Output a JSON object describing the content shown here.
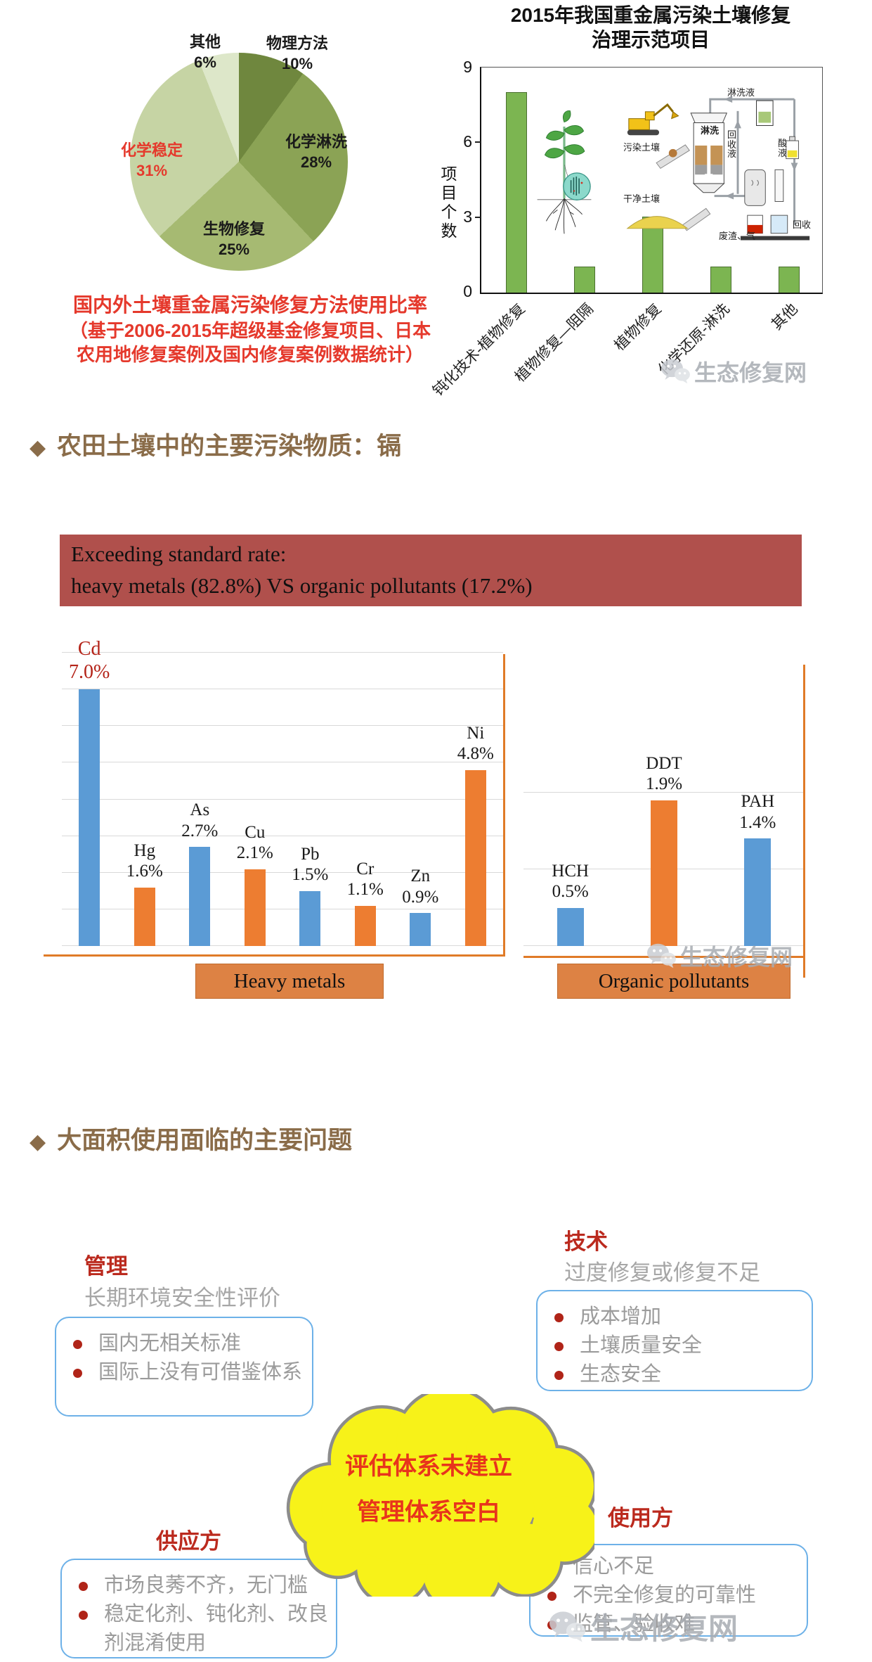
{
  "watermark": {
    "text": "生态修复网"
  },
  "sections": [
    {
      "bullet": "◆",
      "title": "农田土壤中的主要污染物质：镉"
    },
    {
      "bullet": "◆",
      "title": "大面积使用面临的主要问题"
    }
  ],
  "banner": {
    "line1": "Exceeding standard rate:",
    "line2": "heavy metals (82.8%) VS organic pollutants (17.2%)",
    "bg_color": "#b0504c"
  },
  "problems": {
    "manage": {
      "title": "管理",
      "subtitle": "长期环境安全性评价",
      "items": [
        "国内无相关标准",
        "国际上没有可借鉴体系"
      ]
    },
    "tech": {
      "title": "技术",
      "subtitle": "过度修复或修复不足",
      "items": [
        "成本增加",
        "土壤质量安全",
        "生态安全"
      ]
    },
    "supplier": {
      "title": "供应方",
      "items": [
        "市场良莠不齐，无门槛",
        "稳定化剂、钝化剂、改良剂混淆使用"
      ]
    },
    "user": {
      "title": "使用方",
      "items": [
        "信心不足",
        "不完全修复的可靠性",
        "监管、验收难"
      ]
    },
    "cloud": {
      "line1": "评估体系未建立",
      "line2": "管理体系空白",
      "fill": "#f7f219",
      "border": "#8c8c8c",
      "text_color": "#e8341c"
    }
  },
  "chart_data": [
    {
      "type": "pie",
      "name": "remediation-methods-share",
      "direction": "clockwise",
      "start_angle_deg": 0,
      "slices": [
        {
          "label": "物理方法",
          "value": 10,
          "value_label": "10%",
          "color": "#6f873e",
          "label_color": "#1a1a1a"
        },
        {
          "label": "化学淋洗",
          "value": 28,
          "value_label": "28%",
          "color": "#8ba355",
          "label_color": "#1a1a1a"
        },
        {
          "label": "生物修复",
          "value": 25,
          "value_label": "25%",
          "color": "#a6ba72",
          "label_color": "#1a1a1a"
        },
        {
          "label": "化学稳定",
          "value": 31,
          "value_label": "31%",
          "color": "#c6d4a4",
          "label_color": "#e5392c"
        },
        {
          "label": "其他",
          "value": 6,
          "value_label": "6%",
          "color": "#dde7c9",
          "label_color": "#1a1a1a"
        }
      ],
      "caption_lines": [
        "国内外土壤重金属污染修复方法使用比率",
        "（基于2006-2015年超级基金修复项目、日本",
        "农用地修复案例及国内修复案例数据统计）"
      ]
    },
    {
      "type": "bar",
      "name": "2015-demonstration-projects",
      "title_lines": [
        "2015年我国重金属污染土壤修复",
        "治理示范项目"
      ],
      "categories": [
        "钝化技术-植物修复",
        "植物修复—阻隔",
        "植物修复",
        "化学还原-淋洗",
        "其他"
      ],
      "values": [
        8,
        1,
        3,
        1,
        1
      ],
      "ylabel": "项目个数",
      "ytick_labels": [
        "9",
        "6",
        "3",
        "0"
      ],
      "ylim": [
        0,
        9
      ],
      "bar_color": "#7cb551",
      "bar_border": "#4b7030",
      "diagram_labels": [
        "淋洗液",
        "回收液",
        "酸液",
        "淋洗",
        "污染土壤",
        "干净土壤",
        "废渣、气",
        "回收"
      ]
    },
    {
      "type": "bar",
      "name": "heavy-metals-exceedance",
      "group_label": "Heavy metals",
      "categories": [
        "Cd",
        "Hg",
        "As",
        "Cu",
        "Pb",
        "Cr",
        "Zn",
        "Ni"
      ],
      "values": [
        7.0,
        1.6,
        2.7,
        2.1,
        1.5,
        1.1,
        0.9,
        4.8
      ],
      "value_labels": [
        "7.0%",
        "1.6%",
        "2.7%",
        "2.1%",
        "1.5%",
        "1.1%",
        "0.9%",
        "4.8%"
      ],
      "colors": [
        "#5b9bd5",
        "#ed7d31",
        "#5b9bd5",
        "#ed7d31",
        "#5b9bd5",
        "#ed7d31",
        "#5b9bd5",
        "#ed7d31"
      ],
      "label_colors": [
        "#b42318",
        "#1a1a1a",
        "#1a1a1a",
        "#1a1a1a",
        "#1a1a1a",
        "#1a1a1a",
        "#1a1a1a",
        "#1a1a1a"
      ],
      "ylim": [
        0,
        8
      ],
      "grid": true
    },
    {
      "type": "bar",
      "name": "organic-pollutants-exceedance",
      "group_label": "Organic pollutants",
      "categories": [
        "HCH",
        "DDT",
        "PAH"
      ],
      "values": [
        0.5,
        1.9,
        1.4
      ],
      "value_labels": [
        "0.5%",
        "1.9%",
        "1.4%"
      ],
      "colors": [
        "#5b9bd5",
        "#ed7d31",
        "#5b9bd5"
      ],
      "label_colors": [
        "#1a1a1a",
        "#1a1a1a",
        "#1a1a1a"
      ],
      "ylim": [
        0,
        2.2
      ],
      "grid": true
    }
  ]
}
